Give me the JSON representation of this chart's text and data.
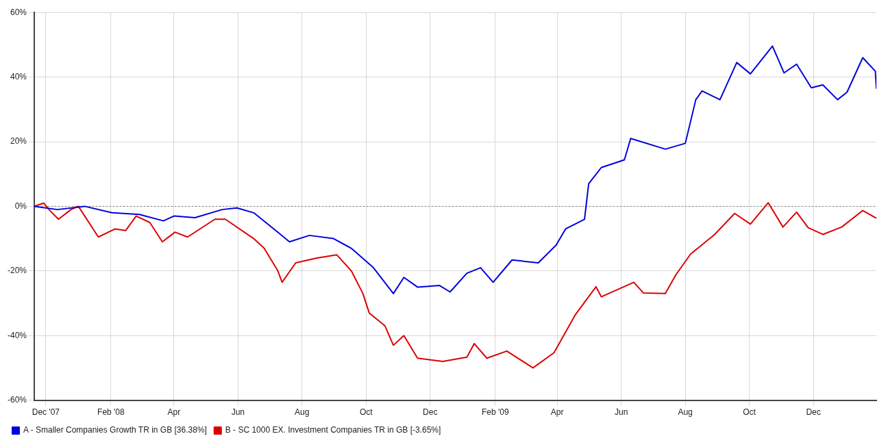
{
  "chart_data": {
    "type": "line",
    "xlim": [
      "2007-11-20",
      "2010-01-30"
    ],
    "xticks": [
      {
        "value": "2007-12-01",
        "label": "Dec '07"
      },
      {
        "value": "2008-02-01",
        "label": "Feb '08"
      },
      {
        "value": "2008-04-01",
        "label": "Apr"
      },
      {
        "value": "2008-06-01",
        "label": "Jun"
      },
      {
        "value": "2008-08-01",
        "label": "Aug"
      },
      {
        "value": "2008-10-01",
        "label": "Oct"
      },
      {
        "value": "2008-12-01",
        "label": "Dec"
      },
      {
        "value": "2009-02-01",
        "label": "Feb '09"
      },
      {
        "value": "2009-04-01",
        "label": "Apr"
      },
      {
        "value": "2009-06-01",
        "label": "Jun"
      },
      {
        "value": "2009-08-01",
        "label": "Aug"
      },
      {
        "value": "2009-10-01",
        "label": "Oct"
      },
      {
        "value": "2009-12-01",
        "label": "Dec"
      }
    ],
    "ylim": [
      -60,
      60
    ],
    "yticks": [
      {
        "value": -60,
        "label": "-60%"
      },
      {
        "value": -40,
        "label": "-40%"
      },
      {
        "value": -20,
        "label": "-20%"
      },
      {
        "value": 0,
        "label": "0%"
      },
      {
        "value": 20,
        "label": "20%"
      },
      {
        "value": 40,
        "label": "40%"
      },
      {
        "value": 60,
        "label": "60%"
      }
    ],
    "grid": true,
    "legend": "bottom left",
    "ref_lines": [
      {
        "axis": "y",
        "value": 0,
        "color": "#808080",
        "line_style": "dotted"
      }
    ],
    "series": [
      {
        "name": "A - Smaller Companies Growth TR in GB [36.38%]",
        "color": "#0000dd",
        "x": [
          "2007-11-20",
          "2007-12-12",
          "2008-01-07",
          "2008-02-02",
          "2008-02-28",
          "2008-03-22",
          "2008-04-01",
          "2008-04-21",
          "2008-05-17",
          "2008-05-31",
          "2008-06-16",
          "2008-07-09",
          "2008-07-20",
          "2008-08-08",
          "2008-08-31",
          "2008-09-17",
          "2008-10-08",
          "2008-10-27",
          "2008-11-06",
          "2008-11-19",
          "2008-12-10",
          "2008-12-20",
          "2009-01-05",
          "2009-01-18",
          "2009-01-30",
          "2009-02-17",
          "2009-03-14",
          "2009-03-31",
          "2009-04-09",
          "2009-04-27",
          "2009-05-01",
          "2009-05-13",
          "2009-06-04",
          "2009-06-10",
          "2009-07-13",
          "2009-08-01",
          "2009-08-11",
          "2009-08-17",
          "2009-09-03",
          "2009-09-19",
          "2009-10-02",
          "2009-10-23",
          "2009-11-03",
          "2009-11-15",
          "2009-11-29",
          "2009-12-10",
          "2009-12-24",
          "2010-01-02",
          "2010-01-17",
          "2010-01-29",
          "2010-01-30"
        ],
        "values": [
          0,
          -1,
          0,
          -2,
          -2.5,
          -4.5,
          -3,
          -3.5,
          -1,
          -0.5,
          -2,
          -8,
          -11,
          -9,
          -10,
          -13,
          -19,
          -27,
          -22,
          -25,
          -24.5,
          -26.5,
          -20.7,
          -19,
          -23.5,
          -16.6,
          -17.5,
          -12,
          -7,
          -4,
          7,
          12,
          14.4,
          21,
          17.7,
          19.5,
          33,
          35.7,
          33,
          44.5,
          41,
          49.6,
          41.3,
          44,
          36.7,
          37.6,
          33,
          35.3,
          46,
          41.8,
          36.4
        ]
      },
      {
        "name": "B - SC 1000 EX. Investment Companies TR in GB [-3.65%]",
        "color": "#dd0000",
        "x": [
          "2007-11-20",
          "2007-11-29",
          "2007-12-04",
          "2007-12-13",
          "2007-12-25",
          "2008-01-01",
          "2008-01-20",
          "2008-02-05",
          "2008-02-15",
          "2008-02-25",
          "2008-03-09",
          "2008-03-21",
          "2008-04-02",
          "2008-04-14",
          "2008-05-10",
          "2008-05-20",
          "2008-06-16",
          "2008-06-26",
          "2008-07-09",
          "2008-07-13",
          "2008-07-26",
          "2008-08-15",
          "2008-09-03",
          "2008-09-17",
          "2008-09-28",
          "2008-10-04",
          "2008-10-19",
          "2008-10-27",
          "2008-11-06",
          "2008-11-19",
          "2008-12-13",
          "2009-01-05",
          "2009-01-12",
          "2009-01-24",
          "2009-02-12",
          "2009-03-09",
          "2009-03-29",
          "2009-04-18",
          "2009-05-08",
          "2009-05-13",
          "2009-06-13",
          "2009-06-22",
          "2009-07-13",
          "2009-07-23",
          "2009-08-06",
          "2009-08-29",
          "2009-09-17",
          "2009-10-02",
          "2009-10-19",
          "2009-11-02",
          "2009-11-15",
          "2009-11-26",
          "2009-12-10",
          "2009-12-28",
          "2010-01-17",
          "2010-01-30"
        ],
        "values": [
          0,
          1,
          -1,
          -4,
          -1,
          0,
          -9.5,
          -7,
          -7.5,
          -3,
          -5,
          -11,
          -8,
          -9.5,
          -4,
          -4,
          -10,
          -13,
          -20,
          -23.5,
          -17.5,
          -16,
          -15,
          -20,
          -27,
          -33,
          -37,
          -43,
          -40,
          -47,
          -48,
          -46.7,
          -42.5,
          -47,
          -44.8,
          -50,
          -45.3,
          -33.7,
          -24.9,
          -28,
          -23.5,
          -26.8,
          -27,
          -21.2,
          -14.8,
          -8.7,
          -2.2,
          -5.5,
          1.1,
          -6.4,
          -1.8,
          -6.6,
          -8.7,
          -6.4,
          -1.3,
          -3.7
        ]
      }
    ]
  }
}
